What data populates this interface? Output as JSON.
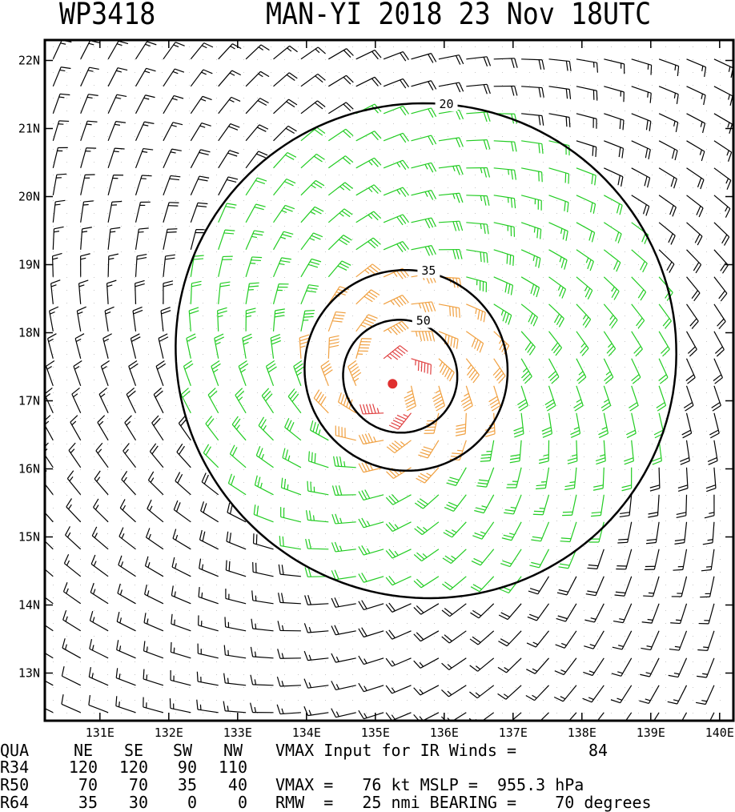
{
  "header": {
    "storm_id": "WP3418",
    "title": "MAN-YI 2018 23 Nov 18UTC"
  },
  "chart_data": {
    "type": "contour+barbs",
    "xlim": [
      130.2,
      140.2
    ],
    "ylim": [
      12.3,
      22.3
    ],
    "x_ticks": [
      131,
      132,
      133,
      134,
      135,
      136,
      137,
      138,
      139,
      140
    ],
    "x_tick_labels": [
      "131E",
      "132E",
      "133E",
      "134E",
      "135E",
      "136E",
      "137E",
      "138E",
      "139E",
      "140E"
    ],
    "y_ticks": [
      13,
      14,
      15,
      16,
      17,
      18,
      19,
      20,
      21,
      22
    ],
    "y_tick_labels": [
      "13N",
      "14N",
      "15N",
      "16N",
      "17N",
      "18N",
      "19N",
      "20N",
      "21N",
      "22N"
    ],
    "center": {
      "lon": 135.25,
      "lat": 17.25
    },
    "contours": [
      {
        "level": 20,
        "label": "20"
      },
      {
        "level": 35,
        "label": "35"
      },
      {
        "level": 50,
        "label": "50"
      }
    ],
    "barb_colors": {
      "calm": "#000000",
      "gale": "#22cc22",
      "storm": "#f0a040",
      "hurricane": "#e04040"
    },
    "center_color": "#e03030",
    "vmax_kt": 76,
    "rmw_nmi": 25
  },
  "stats": {
    "header_row": [
      "QUA",
      "NE",
      "SE",
      "SW",
      "NW"
    ],
    "rows": [
      {
        "label": "R34",
        "ne": "120",
        "se": "120",
        "sw": "90",
        "nw": "110"
      },
      {
        "label": "R50",
        "ne": "70",
        "se": "70",
        "sw": "35",
        "nw": "40"
      },
      {
        "label": "R64",
        "ne": "35",
        "se": "30",
        "sw": "0",
        "nw": "0"
      }
    ],
    "vmax_input_label": "VMAX Input for IR Winds =",
    "vmax_input_value": "84",
    "vmax_line": "VMAX =   76 kt MSLP =  955.3 hPa",
    "rmw_line": "RMW  =   25 nmi BEARING =    70 degrees"
  }
}
